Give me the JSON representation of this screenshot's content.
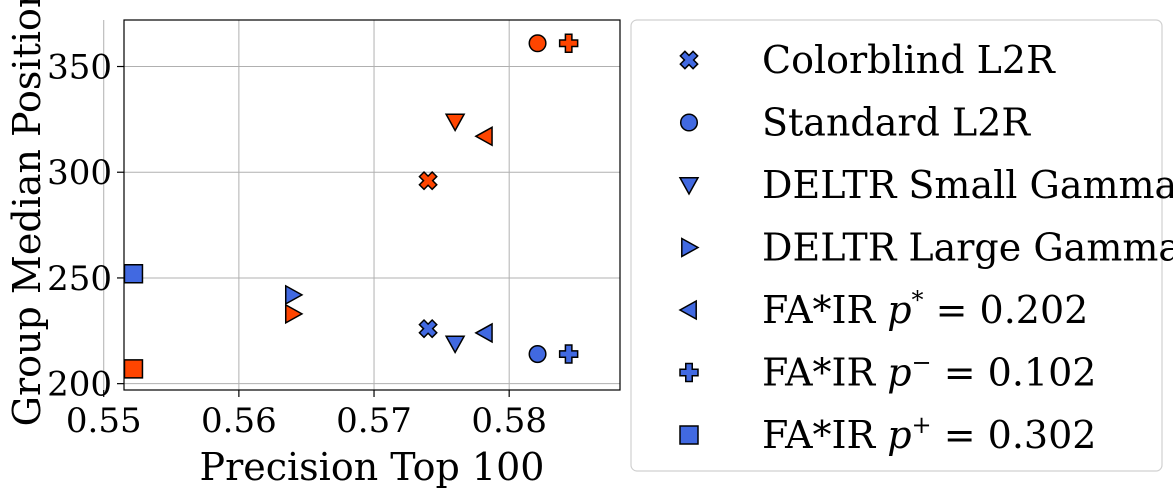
{
  "chart_data": {
    "type": "scatter",
    "title": "",
    "xlabel": "Precision Top 100",
    "ylabel": "Group Median Position",
    "xlim": [
      0.5515,
      0.5882
    ],
    "ylim": [
      197,
      372
    ],
    "xticks": [
      0.55,
      0.56,
      0.57,
      0.58
    ],
    "xtick_labels": [
      "0.55",
      "0.56",
      "0.57",
      "0.58"
    ],
    "yticks": [
      200,
      250,
      300,
      350
    ],
    "ytick_labels": [
      "200",
      "250",
      "300",
      "350"
    ],
    "grid": true,
    "legend_placement": "outside-right",
    "colors": {
      "group_a": "#ff4500",
      "group_b": "#4169e1"
    },
    "series": [
      {
        "name": "Colorblind L2R",
        "legend": {
          "text": "Colorblind L2R"
        },
        "marker": "x-filled",
        "points": [
          {
            "x": 0.574,
            "y": 296,
            "group": "a"
          },
          {
            "x": 0.574,
            "y": 226,
            "group": "b"
          }
        ]
      },
      {
        "name": "Standard L2R",
        "legend": {
          "text": "Standard L2R"
        },
        "marker": "circle",
        "points": [
          {
            "x": 0.5821,
            "y": 361,
            "group": "a"
          },
          {
            "x": 0.5821,
            "y": 214,
            "group": "b"
          }
        ]
      },
      {
        "name": "DELTR Small Gamma",
        "legend": {
          "text": "DELTR Small Gamma"
        },
        "marker": "triangle-down",
        "points": [
          {
            "x": 0.576,
            "y": 324,
            "group": "a"
          },
          {
            "x": 0.576,
            "y": 219,
            "group": "b"
          }
        ]
      },
      {
        "name": "DELTR Large Gamma",
        "legend": {
          "text": "DELTR Large Gamma"
        },
        "marker": "triangle-right",
        "points": [
          {
            "x": 0.564,
            "y": 233,
            "group": "a"
          },
          {
            "x": 0.564,
            "y": 242,
            "group": "b"
          }
        ]
      },
      {
        "name": "FA*IR p* = 0.202",
        "legend": {
          "prefix": "FA*IR ",
          "var": "p",
          "sup": "*",
          "suffix": " = 0.202"
        },
        "marker": "triangle-left",
        "points": [
          {
            "x": 0.5782,
            "y": 317,
            "group": "a"
          },
          {
            "x": 0.5782,
            "y": 224,
            "group": "b"
          }
        ]
      },
      {
        "name": "FA*IR p⁻ = 0.102",
        "legend": {
          "prefix": "FA*IR ",
          "var": "p",
          "sup": "−",
          "suffix": " = 0.102"
        },
        "marker": "plus-filled",
        "points": [
          {
            "x": 0.5844,
            "y": 361,
            "group": "a"
          },
          {
            "x": 0.5844,
            "y": 214,
            "group": "b"
          }
        ]
      },
      {
        "name": "FA*IR p⁺ = 0.302",
        "legend": {
          "prefix": "FA*IR ",
          "var": "p",
          "sup": "+",
          "suffix": " = 0.302"
        },
        "marker": "square",
        "points": [
          {
            "x": 0.5522,
            "y": 207,
            "group": "a"
          },
          {
            "x": 0.5522,
            "y": 252,
            "group": "b"
          }
        ]
      }
    ]
  }
}
